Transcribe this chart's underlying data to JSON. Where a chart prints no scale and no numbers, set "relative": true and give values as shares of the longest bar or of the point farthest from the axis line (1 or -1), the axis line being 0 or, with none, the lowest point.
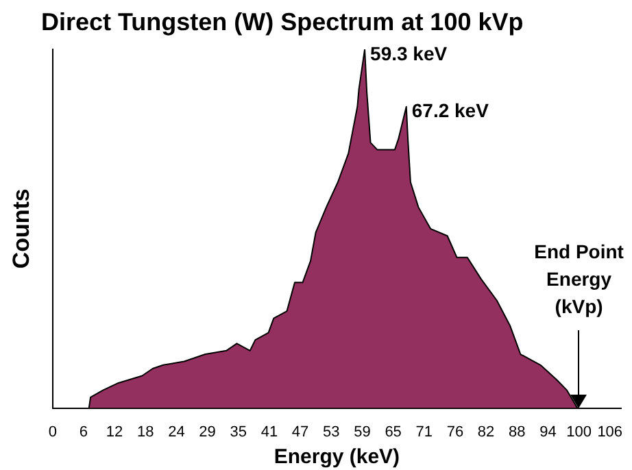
{
  "chart_data": {
    "type": "area",
    "title": "Direct Tungsten (W) Spectrum at 100 kVp",
    "xlabel": "Energy (keV)",
    "ylabel": "Counts",
    "relative": true,
    "x": [
      6.9,
      7.2,
      9.6,
      12.5,
      17,
      19,
      21,
      25,
      29,
      33,
      35,
      37.5,
      38.5,
      41,
      42,
      44.5,
      46,
      47.5,
      49,
      50,
      52,
      54.2,
      56.2,
      57.9,
      58.2,
      59.3,
      59.7,
      60.4,
      61.7,
      65,
      65.7,
      67.2,
      67.5,
      68,
      69.5,
      71.8,
      75,
      76.8,
      78.8,
      81.4,
      84.4,
      86.9,
      88.9,
      92.7,
      95.7,
      97.7,
      99.7
    ],
    "series": [
      {
        "color": "#933060",
        "values": [
          0,
          0.03,
          0.05,
          0.07,
          0.09,
          0.11,
          0.12,
          0.13,
          0.15,
          0.16,
          0.18,
          0.16,
          0.19,
          0.21,
          0.25,
          0.27,
          0.35,
          0.35,
          0.41,
          0.49,
          0.56,
          0.63,
          0.71,
          0.84,
          0.89,
          1,
          0.88,
          0.74,
          0.72,
          0.72,
          0.75,
          0.84,
          0.75,
          0.63,
          0.56,
          0.5,
          0.48,
          0.42,
          0.42,
          0.36,
          0.3,
          0.23,
          0.15,
          0.12,
          0.08,
          0.05,
          0
        ]
      }
    ],
    "xlim": [
      0,
      108
    ],
    "xticks": [
      0,
      {
        "value": 5.88,
        "label": "6"
      },
      {
        "value": 11.76,
        "label": "12"
      },
      {
        "value": 17.65,
        "label": "18"
      },
      {
        "value": 23.53,
        "label": "24"
      },
      {
        "value": 29.41,
        "label": "29"
      },
      {
        "value": 35.29,
        "label": "35"
      },
      {
        "value": 41.18,
        "label": "41"
      },
      {
        "value": 47.06,
        "label": "47"
      },
      {
        "value": 52.94,
        "label": "53"
      },
      {
        "value": 58.82,
        "label": "59"
      },
      {
        "value": 64.71,
        "label": "65"
      },
      {
        "value": 70.59,
        "label": "71"
      },
      {
        "value": 76.47,
        "label": "76"
      },
      {
        "value": 82.35,
        "label": "82"
      },
      {
        "value": 88.24,
        "label": "88"
      },
      {
        "value": 94.12,
        "label": "94"
      },
      100,
      {
        "value": 105.88,
        "label": "106"
      }
    ],
    "annotations": [
      {
        "text": "59.3 keV",
        "x": 59.3,
        "y": 1
      },
      {
        "text": "67.2 keV",
        "x": 67.2,
        "y": 0.84
      },
      {
        "text": "End Point Energy (kVp)",
        "x": 100,
        "y": 0
      }
    ],
    "grid": false,
    "legend": false
  }
}
